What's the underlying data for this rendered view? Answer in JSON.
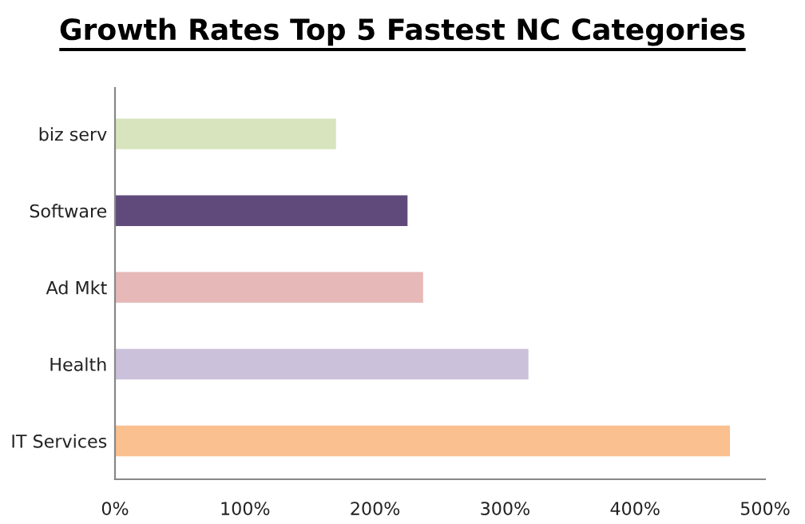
{
  "chart_data": {
    "type": "bar",
    "orientation": "horizontal",
    "title": "Growth Rates Top 5 Fastest NC Categories",
    "categories": [
      "biz serv",
      "Software",
      "Ad Mkt",
      "Health",
      "IT Services"
    ],
    "values": [
      170,
      225,
      237,
      318,
      473
    ],
    "colors": [
      "#d7e4bd",
      "#604a7b",
      "#e6b9b8",
      "#ccc1da",
      "#fac090"
    ],
    "xlim": [
      0,
      500
    ],
    "xticks": [
      {
        "value": 0,
        "label": "0%"
      },
      {
        "value": 100,
        "label": "100%"
      },
      {
        "value": 200,
        "label": "200%"
      },
      {
        "value": 300,
        "label": "300%"
      },
      {
        "value": 400,
        "label": "400%"
      },
      {
        "value": 500,
        "label": "500%"
      }
    ],
    "grid": false,
    "legend": false
  }
}
